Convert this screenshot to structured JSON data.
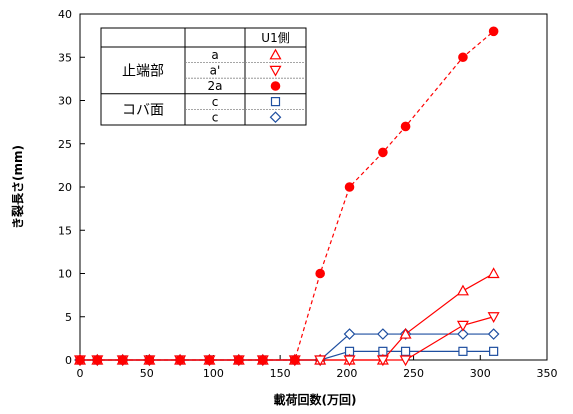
{
  "chart_data": {
    "type": "line",
    "xlabel": "載荷回数(万回)",
    "ylabel": "き裂長さ(mm)",
    "xlim": [
      0,
      350
    ],
    "ylim": [
      0,
      40
    ],
    "xticks": [
      0,
      50,
      100,
      150,
      200,
      250,
      300,
      350
    ],
    "yticks": [
      0,
      5,
      10,
      15,
      20,
      25,
      30,
      35,
      40
    ],
    "grid": false,
    "legend": {
      "position": "top-left",
      "header": "U1側",
      "groups": [
        {
          "label": "止端部",
          "rows": [
            {
              "name": "a",
              "series": 0
            },
            {
              "name": "a'",
              "series": 1
            },
            {
              "name": "2a",
              "series": 2
            }
          ]
        },
        {
          "label": "コバ面",
          "rows": [
            {
              "name": "c",
              "series": 3
            },
            {
              "name": "c",
              "series": 4
            }
          ]
        }
      ]
    },
    "series": [
      {
        "name": "a",
        "color": "#ff0000",
        "marker": "triangle-up",
        "filled": false,
        "dash": false,
        "x": [
          0,
          13,
          32,
          52,
          75,
          97,
          119,
          137,
          161,
          180,
          202,
          227,
          244,
          287,
          310
        ],
        "y": [
          0,
          0,
          0,
          0,
          0,
          0,
          0,
          0,
          0,
          0,
          0,
          0,
          3,
          8,
          10
        ]
      },
      {
        "name": "a'",
        "color": "#ff0000",
        "marker": "triangle-down",
        "filled": false,
        "dash": false,
        "x": [
          0,
          13,
          32,
          52,
          75,
          97,
          119,
          137,
          161,
          180,
          202,
          227,
          244,
          287,
          310
        ],
        "y": [
          0,
          0,
          0,
          0,
          0,
          0,
          0,
          0,
          0,
          0,
          0,
          0,
          0,
          4,
          5
        ]
      },
      {
        "name": "2a",
        "color": "#ff0000",
        "marker": "circle",
        "filled": true,
        "dash": true,
        "x": [
          0,
          13,
          32,
          52,
          75,
          97,
          119,
          137,
          161,
          180,
          202,
          227,
          244,
          287,
          310
        ],
        "y": [
          0,
          0,
          0,
          0,
          0,
          0,
          0,
          0,
          0,
          10,
          20,
          24,
          27,
          35,
          38
        ]
      },
      {
        "name": "c",
        "color": "#1f4fa0",
        "marker": "square",
        "filled": false,
        "dash": false,
        "x": [
          0,
          13,
          32,
          52,
          75,
          97,
          119,
          137,
          161,
          180,
          202,
          227,
          244,
          287,
          310
        ],
        "y": [
          0,
          0,
          0,
          0,
          0,
          0,
          0,
          0,
          0,
          0,
          1,
          1,
          1,
          1,
          1
        ]
      },
      {
        "name": "c",
        "color": "#1f4fa0",
        "marker": "diamond",
        "filled": false,
        "dash": false,
        "x": [
          0,
          13,
          32,
          52,
          75,
          97,
          119,
          137,
          161,
          180,
          202,
          227,
          244,
          287,
          310
        ],
        "y": [
          0,
          0,
          0,
          0,
          0,
          0,
          0,
          0,
          0,
          0,
          3,
          3,
          3,
          3,
          3
        ]
      }
    ]
  }
}
